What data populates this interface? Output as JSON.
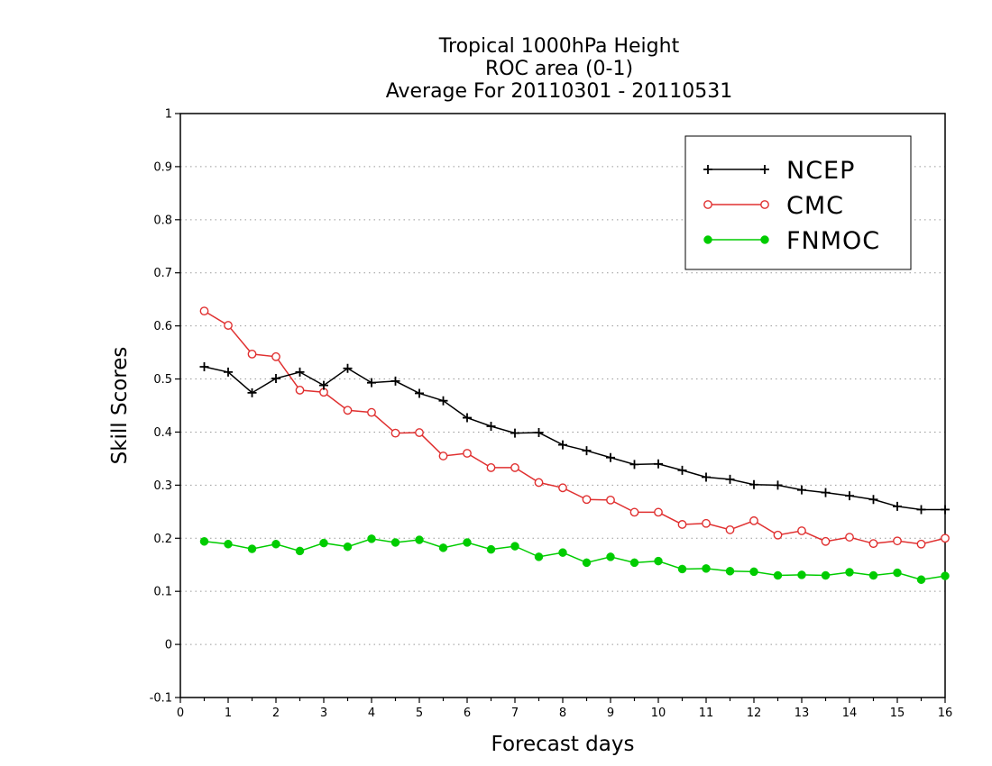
{
  "chart_data": {
    "type": "line",
    "title": [
      "Tropical 1000hPa Height",
      "ROC area (0-1)",
      "Average For 20110301 - 20110531"
    ],
    "xlabel": "Forecast days",
    "ylabel": "Skill Scores",
    "xlim": [
      0,
      16
    ],
    "ylim": [
      -0.1,
      1
    ],
    "xticks": [
      0,
      1,
      2,
      3,
      4,
      5,
      6,
      7,
      8,
      9,
      10,
      11,
      12,
      13,
      14,
      15,
      16
    ],
    "yticks": [
      -0.1,
      0,
      0.1,
      0.2,
      0.3,
      0.4,
      0.5,
      0.6,
      0.7,
      0.8,
      0.9,
      1
    ],
    "ytick_labels": [
      "-0.1",
      "0",
      "0.1",
      "0.2",
      "0.3",
      "0.4",
      "0.5",
      "0.6",
      "0.7",
      "0.8",
      "0.9",
      "1"
    ],
    "grid": "horizontal dotted",
    "legend_position": "top-right",
    "x": [
      0.5,
      1,
      1.5,
      2,
      2.5,
      3,
      3.5,
      4,
      4.5,
      5,
      5.5,
      6,
      6.5,
      7,
      7.5,
      8,
      8.5,
      9,
      9.5,
      10,
      10.5,
      11,
      11.5,
      12,
      12.5,
      13,
      13.5,
      14,
      14.5,
      15,
      15.5,
      16
    ],
    "series": [
      {
        "name": "NCEP",
        "color": "#000000",
        "marker": "plus",
        "values": [
          0.523,
          0.513,
          0.474,
          0.501,
          0.513,
          0.488,
          0.52,
          0.493,
          0.496,
          0.473,
          0.459,
          0.427,
          0.411,
          0.398,
          0.399,
          0.376,
          0.365,
          0.352,
          0.339,
          0.34,
          0.328,
          0.315,
          0.311,
          0.301,
          0.3,
          0.291,
          0.286,
          0.28,
          0.273,
          0.26,
          0.254,
          0.254
        ]
      },
      {
        "name": "CMC",
        "color": "#e03030",
        "marker": "open-circle",
        "values": [
          0.628,
          0.601,
          0.547,
          0.542,
          0.479,
          0.475,
          0.441,
          0.437,
          0.398,
          0.399,
          0.355,
          0.36,
          0.333,
          0.333,
          0.305,
          0.295,
          0.273,
          0.272,
          0.249,
          0.249,
          0.226,
          0.228,
          0.216,
          0.233,
          0.206,
          0.214,
          0.194,
          0.202,
          0.19,
          0.195,
          0.189,
          0.2
        ]
      },
      {
        "name": "FNMOC",
        "color": "#00cc00",
        "marker": "filled-circle",
        "values": [
          0.194,
          0.189,
          0.18,
          0.189,
          0.176,
          0.191,
          0.184,
          0.199,
          0.192,
          0.197,
          0.182,
          0.192,
          0.179,
          0.185,
          0.165,
          0.173,
          0.154,
          0.165,
          0.154,
          0.157,
          0.142,
          0.143,
          0.138,
          0.137,
          0.13,
          0.131,
          0.13,
          0.136,
          0.13,
          0.135,
          0.122,
          0.129
        ]
      }
    ]
  }
}
